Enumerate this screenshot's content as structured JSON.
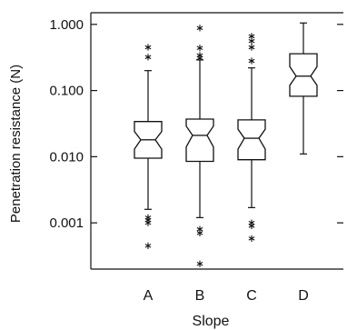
{
  "chart_data": {
    "type": "boxplot",
    "title": "",
    "xlabel": "Slope",
    "ylabel": "Penetration resistance (N)",
    "yscale": "log",
    "ylim": [
      0.0002,
      1.5
    ],
    "y_ticks": [
      1.0,
      0.1,
      0.01,
      0.001
    ],
    "y_tick_labels": [
      "1.000",
      "0.100",
      "0.010",
      "0.001"
    ],
    "notched": true,
    "categories": [
      "A",
      "B",
      "C",
      "D"
    ],
    "boxes": [
      {
        "category": "A",
        "whisker_low": 0.0016,
        "q1": 0.0095,
        "median": 0.018,
        "q3": 0.034,
        "whisker_high": 0.2,
        "notch_low": 0.013,
        "notch_high": 0.024,
        "outliers_low": [
          0.0012,
          0.0011,
          0.001,
          0.00045
        ],
        "outliers_high": [
          0.32,
          0.45
        ]
      },
      {
        "category": "B",
        "whisker_low": 0.0012,
        "q1": 0.0085,
        "median": 0.021,
        "q3": 0.037,
        "whisker_high": 0.29,
        "notch_low": 0.014,
        "notch_high": 0.029,
        "outliers_low": [
          0.0008,
          0.0007,
          0.00024
        ],
        "outliers_high": [
          0.31,
          0.34,
          0.44,
          0.88
        ]
      },
      {
        "category": "C",
        "whisker_low": 0.0017,
        "q1": 0.009,
        "median": 0.019,
        "q3": 0.036,
        "whisker_high": 0.22,
        "notch_low": 0.013,
        "notch_high": 0.026,
        "outliers_low": [
          0.001,
          0.0009,
          0.00058
        ],
        "outliers_high": [
          0.28,
          0.45,
          0.56,
          0.66
        ]
      },
      {
        "category": "D",
        "whisker_low": 0.011,
        "q1": 0.082,
        "median": 0.165,
        "q3": 0.36,
        "whisker_high": 1.05,
        "notch_low": 0.12,
        "notch_high": 0.23,
        "outliers_low": [],
        "outliers_high": []
      }
    ],
    "grid": false,
    "legend": "none"
  }
}
